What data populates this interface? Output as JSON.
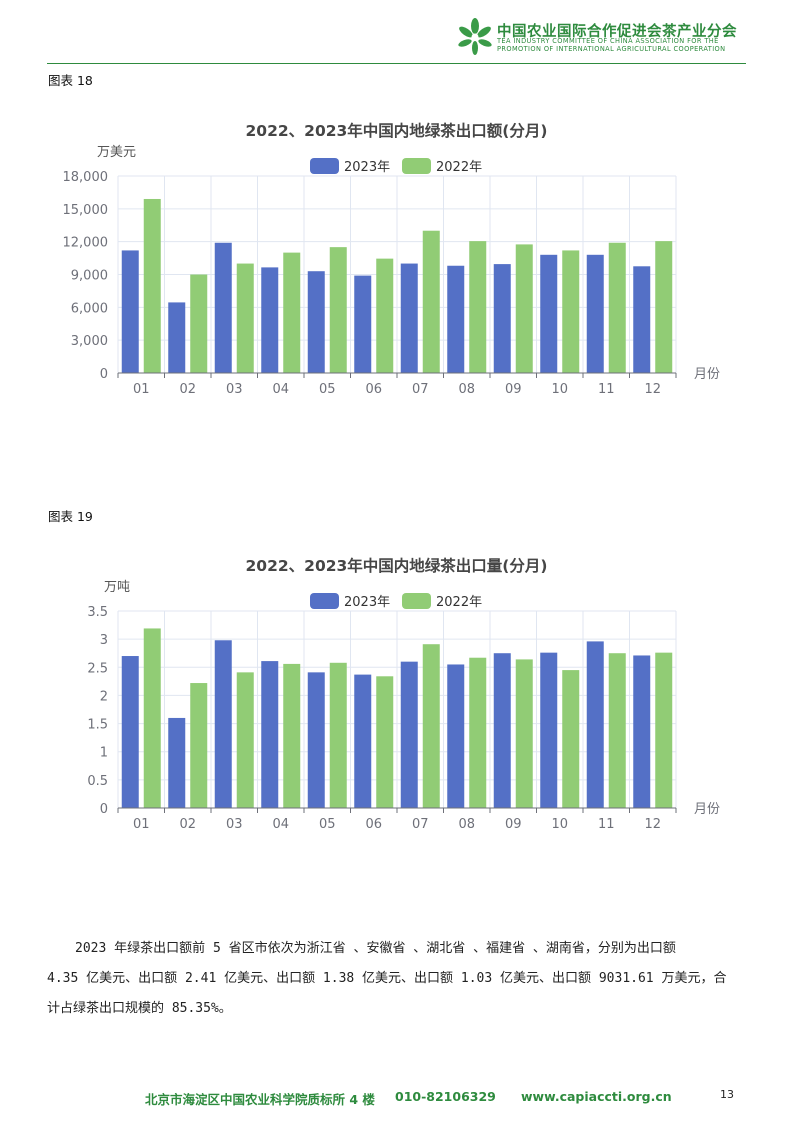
{
  "header": {
    "org_cn": "中国农业国际合作促进会茶产业分会",
    "org_en_line1": "TEA INDUSTRY COMMITTEE OF CHINA ASSOCIATION FOR THE",
    "org_en_line2": "PROMOTION OF INTERNATIONAL AGRICULTURAL COOPERATION",
    "brand_color": "#2e8b3e",
    "logo_icon": "tea-leaf-logo-icon"
  },
  "figures": [
    {
      "label": "图表 18"
    },
    {
      "label": "图表 19"
    }
  ],
  "chart_data": [
    {
      "type": "bar",
      "title": "2022、2023年中国内地绿茶出口额(分月)",
      "ylabel": "万美元",
      "xlabel": "月份",
      "categories": [
        "01",
        "02",
        "03",
        "04",
        "05",
        "06",
        "07",
        "08",
        "09",
        "10",
        "11",
        "12"
      ],
      "ylim": [
        0,
        18000
      ],
      "yticks": [
        0,
        3000,
        6000,
        9000,
        12000,
        15000,
        18000
      ],
      "ytick_labels": [
        "0",
        "3,000",
        "6,000",
        "9,000",
        "12,000",
        "15,000",
        "18,000"
      ],
      "series": [
        {
          "name": "2023年",
          "color": "#5470c6",
          "values": [
            11200,
            6450,
            11900,
            9650,
            9300,
            8900,
            10000,
            9800,
            9950,
            10800,
            10800,
            9750
          ]
        },
        {
          "name": "2022年",
          "color": "#91cc75",
          "values": [
            15900,
            9000,
            10000,
            11000,
            11500,
            10450,
            13000,
            12050,
            11750,
            11200,
            11900,
            12050
          ]
        }
      ],
      "grid": true,
      "legend_position": "top-center"
    },
    {
      "type": "bar",
      "title": "2022、2023年中国内地绿茶出口量(分月)",
      "ylabel": "万吨",
      "xlabel": "月份",
      "categories": [
        "01",
        "02",
        "03",
        "04",
        "05",
        "06",
        "07",
        "08",
        "09",
        "10",
        "11",
        "12"
      ],
      "ylim": [
        0,
        3.5
      ],
      "yticks": [
        0,
        0.5,
        1,
        1.5,
        2,
        2.5,
        3,
        3.5
      ],
      "ytick_labels": [
        "0",
        "0.5",
        "1",
        "1.5",
        "2",
        "2.5",
        "3",
        "3.5"
      ],
      "series": [
        {
          "name": "2023年",
          "color": "#5470c6",
          "values": [
            2.7,
            1.6,
            2.98,
            2.61,
            2.41,
            2.37,
            2.6,
            2.55,
            2.75,
            2.76,
            2.96,
            2.71
          ]
        },
        {
          "name": "2022年",
          "color": "#91cc75",
          "values": [
            3.19,
            2.22,
            2.41,
            2.56,
            2.58,
            2.34,
            2.91,
            2.67,
            2.64,
            2.45,
            2.75,
            2.76
          ]
        }
      ],
      "grid": true,
      "legend_position": "top-center"
    }
  ],
  "paragraph": {
    "line1": "2023 年绿茶出口额前 5 省区市依次为浙江省 、安徽省 、湖北省 、福建省 、湖南省，分别为出口额",
    "line2": "4.35 亿美元、出口额 2.41 亿美元、出口额 1.38 亿美元、出口额 1.03 亿美元、出口额 9031.61 万美元，合",
    "line3": "计占绿茶出口规模的 85.35%。"
  },
  "footer": {
    "address": "北京市海淀区中国农业科学院质标所 4 楼",
    "phone": "010-82106329",
    "website": "www.capiaccti.org.cn",
    "page_number": "13"
  }
}
